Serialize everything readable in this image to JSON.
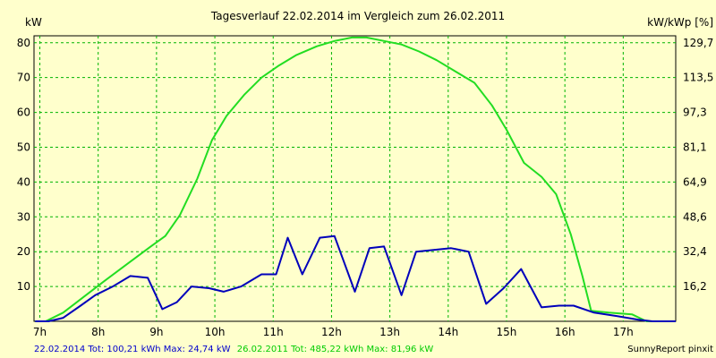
{
  "chart_data": {
    "type": "line",
    "title": "Tagesverlauf 22.02.2014 im Vergleich zum 26.02.2011",
    "ylabel_left": "kW",
    "ylabel_right": "kW/kWp [%]",
    "xlim": [
      6.9,
      17.9
    ],
    "ylim": [
      0,
      82
    ],
    "x_ticks": [
      {
        "x": 7,
        "label": "7h"
      },
      {
        "x": 8,
        "label": "8h"
      },
      {
        "x": 9,
        "label": "9h"
      },
      {
        "x": 10,
        "label": "10h"
      },
      {
        "x": 11,
        "label": "11h"
      },
      {
        "x": 12,
        "label": "12h"
      },
      {
        "x": 13,
        "label": "13h"
      },
      {
        "x": 14,
        "label": "14h"
      },
      {
        "x": 15,
        "label": "15h"
      },
      {
        "x": 16,
        "label": "16h"
      },
      {
        "x": 17,
        "label": "17h"
      }
    ],
    "y_ticks_left": [
      {
        "y": 10,
        "label": "10"
      },
      {
        "y": 20,
        "label": "20"
      },
      {
        "y": 30,
        "label": "30"
      },
      {
        "y": 40,
        "label": "40"
      },
      {
        "y": 50,
        "label": "50"
      },
      {
        "y": 60,
        "label": "60"
      },
      {
        "y": 70,
        "label": "70"
      },
      {
        "y": 80,
        "label": "80"
      }
    ],
    "y_ticks_right": [
      {
        "y": 10,
        "label": "16,2"
      },
      {
        "y": 20,
        "label": "32,4"
      },
      {
        "y": 30,
        "label": "48,6"
      },
      {
        "y": 40,
        "label": "64,9"
      },
      {
        "y": 50,
        "label": "81,1"
      },
      {
        "y": 60,
        "label": "97,3"
      },
      {
        "y": 70,
        "label": "113,5"
      },
      {
        "y": 80,
        "label": "129,7"
      }
    ],
    "grid": true,
    "series": [
      {
        "name": "26.02.2011",
        "color": "#22dd22",
        "points": [
          [
            6.92,
            0
          ],
          [
            7.1,
            0
          ],
          [
            7.4,
            2.5
          ],
          [
            7.75,
            7
          ],
          [
            8.1,
            11.5
          ],
          [
            8.5,
            16.5
          ],
          [
            8.9,
            21.5
          ],
          [
            9.15,
            24.5
          ],
          [
            9.4,
            30.5
          ],
          [
            9.7,
            41
          ],
          [
            9.95,
            52
          ],
          [
            10.2,
            59
          ],
          [
            10.5,
            65
          ],
          [
            10.8,
            70
          ],
          [
            11.1,
            73.5
          ],
          [
            11.4,
            76.5
          ],
          [
            11.75,
            79
          ],
          [
            12.05,
            80.5
          ],
          [
            12.35,
            81.5
          ],
          [
            12.6,
            81.5
          ],
          [
            12.9,
            80.5
          ],
          [
            13.2,
            79.5
          ],
          [
            13.5,
            77.5
          ],
          [
            13.8,
            75
          ],
          [
            14.1,
            72
          ],
          [
            14.45,
            68.5
          ],
          [
            14.75,
            62
          ],
          [
            15.0,
            55
          ],
          [
            15.3,
            45.5
          ],
          [
            15.6,
            41.5
          ],
          [
            15.85,
            36.5
          ],
          [
            16.1,
            25
          ],
          [
            16.3,
            13
          ],
          [
            16.45,
            3
          ],
          [
            16.75,
            2.5
          ],
          [
            17.15,
            2
          ],
          [
            17.4,
            0
          ],
          [
            17.6,
            0
          ],
          [
            17.9,
            0
          ]
        ]
      },
      {
        "name": "22.02.2014",
        "color": "#0000bb",
        "points": [
          [
            6.92,
            0
          ],
          [
            7.15,
            0
          ],
          [
            7.4,
            1
          ],
          [
            7.7,
            4.5
          ],
          [
            7.95,
            7.5
          ],
          [
            8.25,
            10
          ],
          [
            8.55,
            13
          ],
          [
            8.85,
            12.5
          ],
          [
            9.1,
            3.5
          ],
          [
            9.35,
            5.5
          ],
          [
            9.6,
            10
          ],
          [
            9.9,
            9.5
          ],
          [
            10.15,
            8.5
          ],
          [
            10.45,
            10
          ],
          [
            10.8,
            13.5
          ],
          [
            11.05,
            13.5
          ],
          [
            11.25,
            24
          ],
          [
            11.5,
            13.5
          ],
          [
            11.8,
            24
          ],
          [
            12.05,
            24.5
          ],
          [
            12.4,
            8.5
          ],
          [
            12.65,
            21
          ],
          [
            12.9,
            21.5
          ],
          [
            13.2,
            7.5
          ],
          [
            13.45,
            20
          ],
          [
            13.75,
            20.5
          ],
          [
            14.05,
            21
          ],
          [
            14.35,
            20
          ],
          [
            14.65,
            5
          ],
          [
            14.95,
            9.5
          ],
          [
            15.25,
            15
          ],
          [
            15.6,
            4
          ],
          [
            15.9,
            4.5
          ],
          [
            16.15,
            4.5
          ],
          [
            16.5,
            2.5
          ],
          [
            16.9,
            1.5
          ],
          [
            17.25,
            0.5
          ],
          [
            17.5,
            0
          ],
          [
            17.9,
            0
          ]
        ]
      }
    ],
    "footer": {
      "blue_text": "22.02.2014 Tot: 100,21 kWh Max: 24,74 kW",
      "green_text": "26.02.2011 Tot: 485,22 kWh Max: 81,96 kW",
      "credit": "SunnyReport pinxit",
      "blue_color": "#0000cc",
      "green_color": "#00cc00"
    }
  }
}
